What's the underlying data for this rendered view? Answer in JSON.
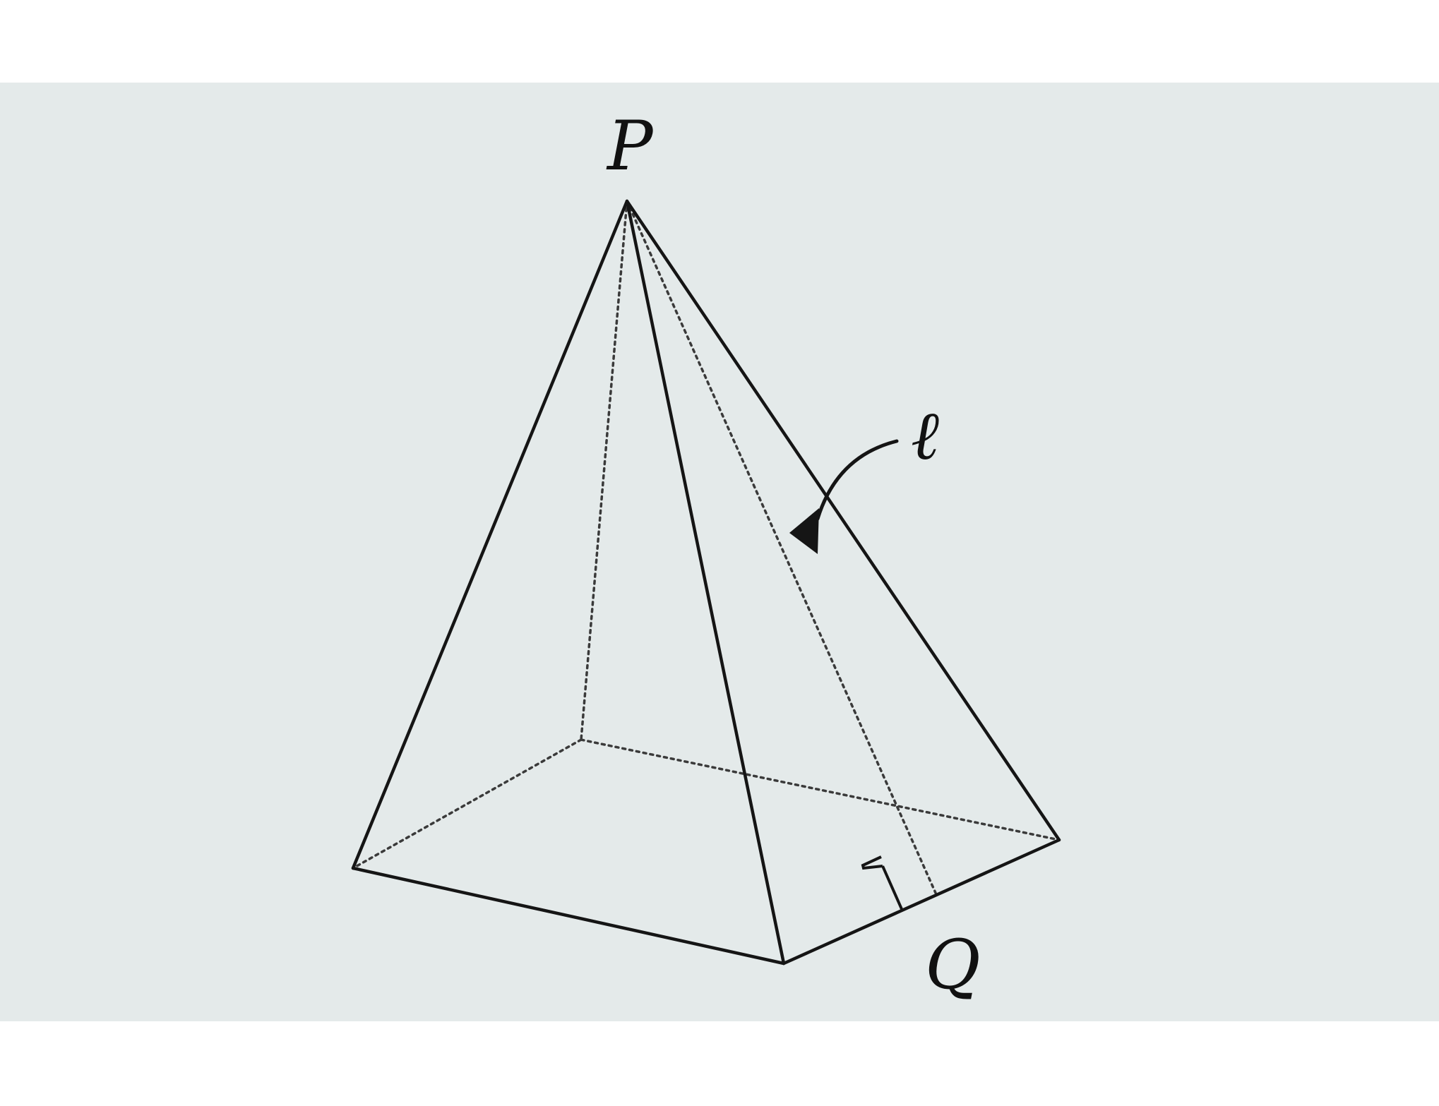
{
  "figure": {
    "background_color": "#e4eaea",
    "line_color": "#151515",
    "labels": {
      "apex": "P",
      "base_point": "Q",
      "line": "ℓ"
    }
  }
}
